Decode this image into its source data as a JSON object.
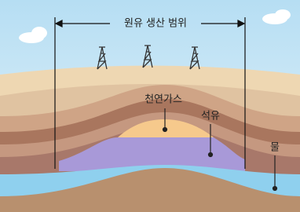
{
  "range_label": "원유 생산 범위",
  "labels": {
    "gas": "천연가스",
    "oil": "석유",
    "water": "물"
  }
}
